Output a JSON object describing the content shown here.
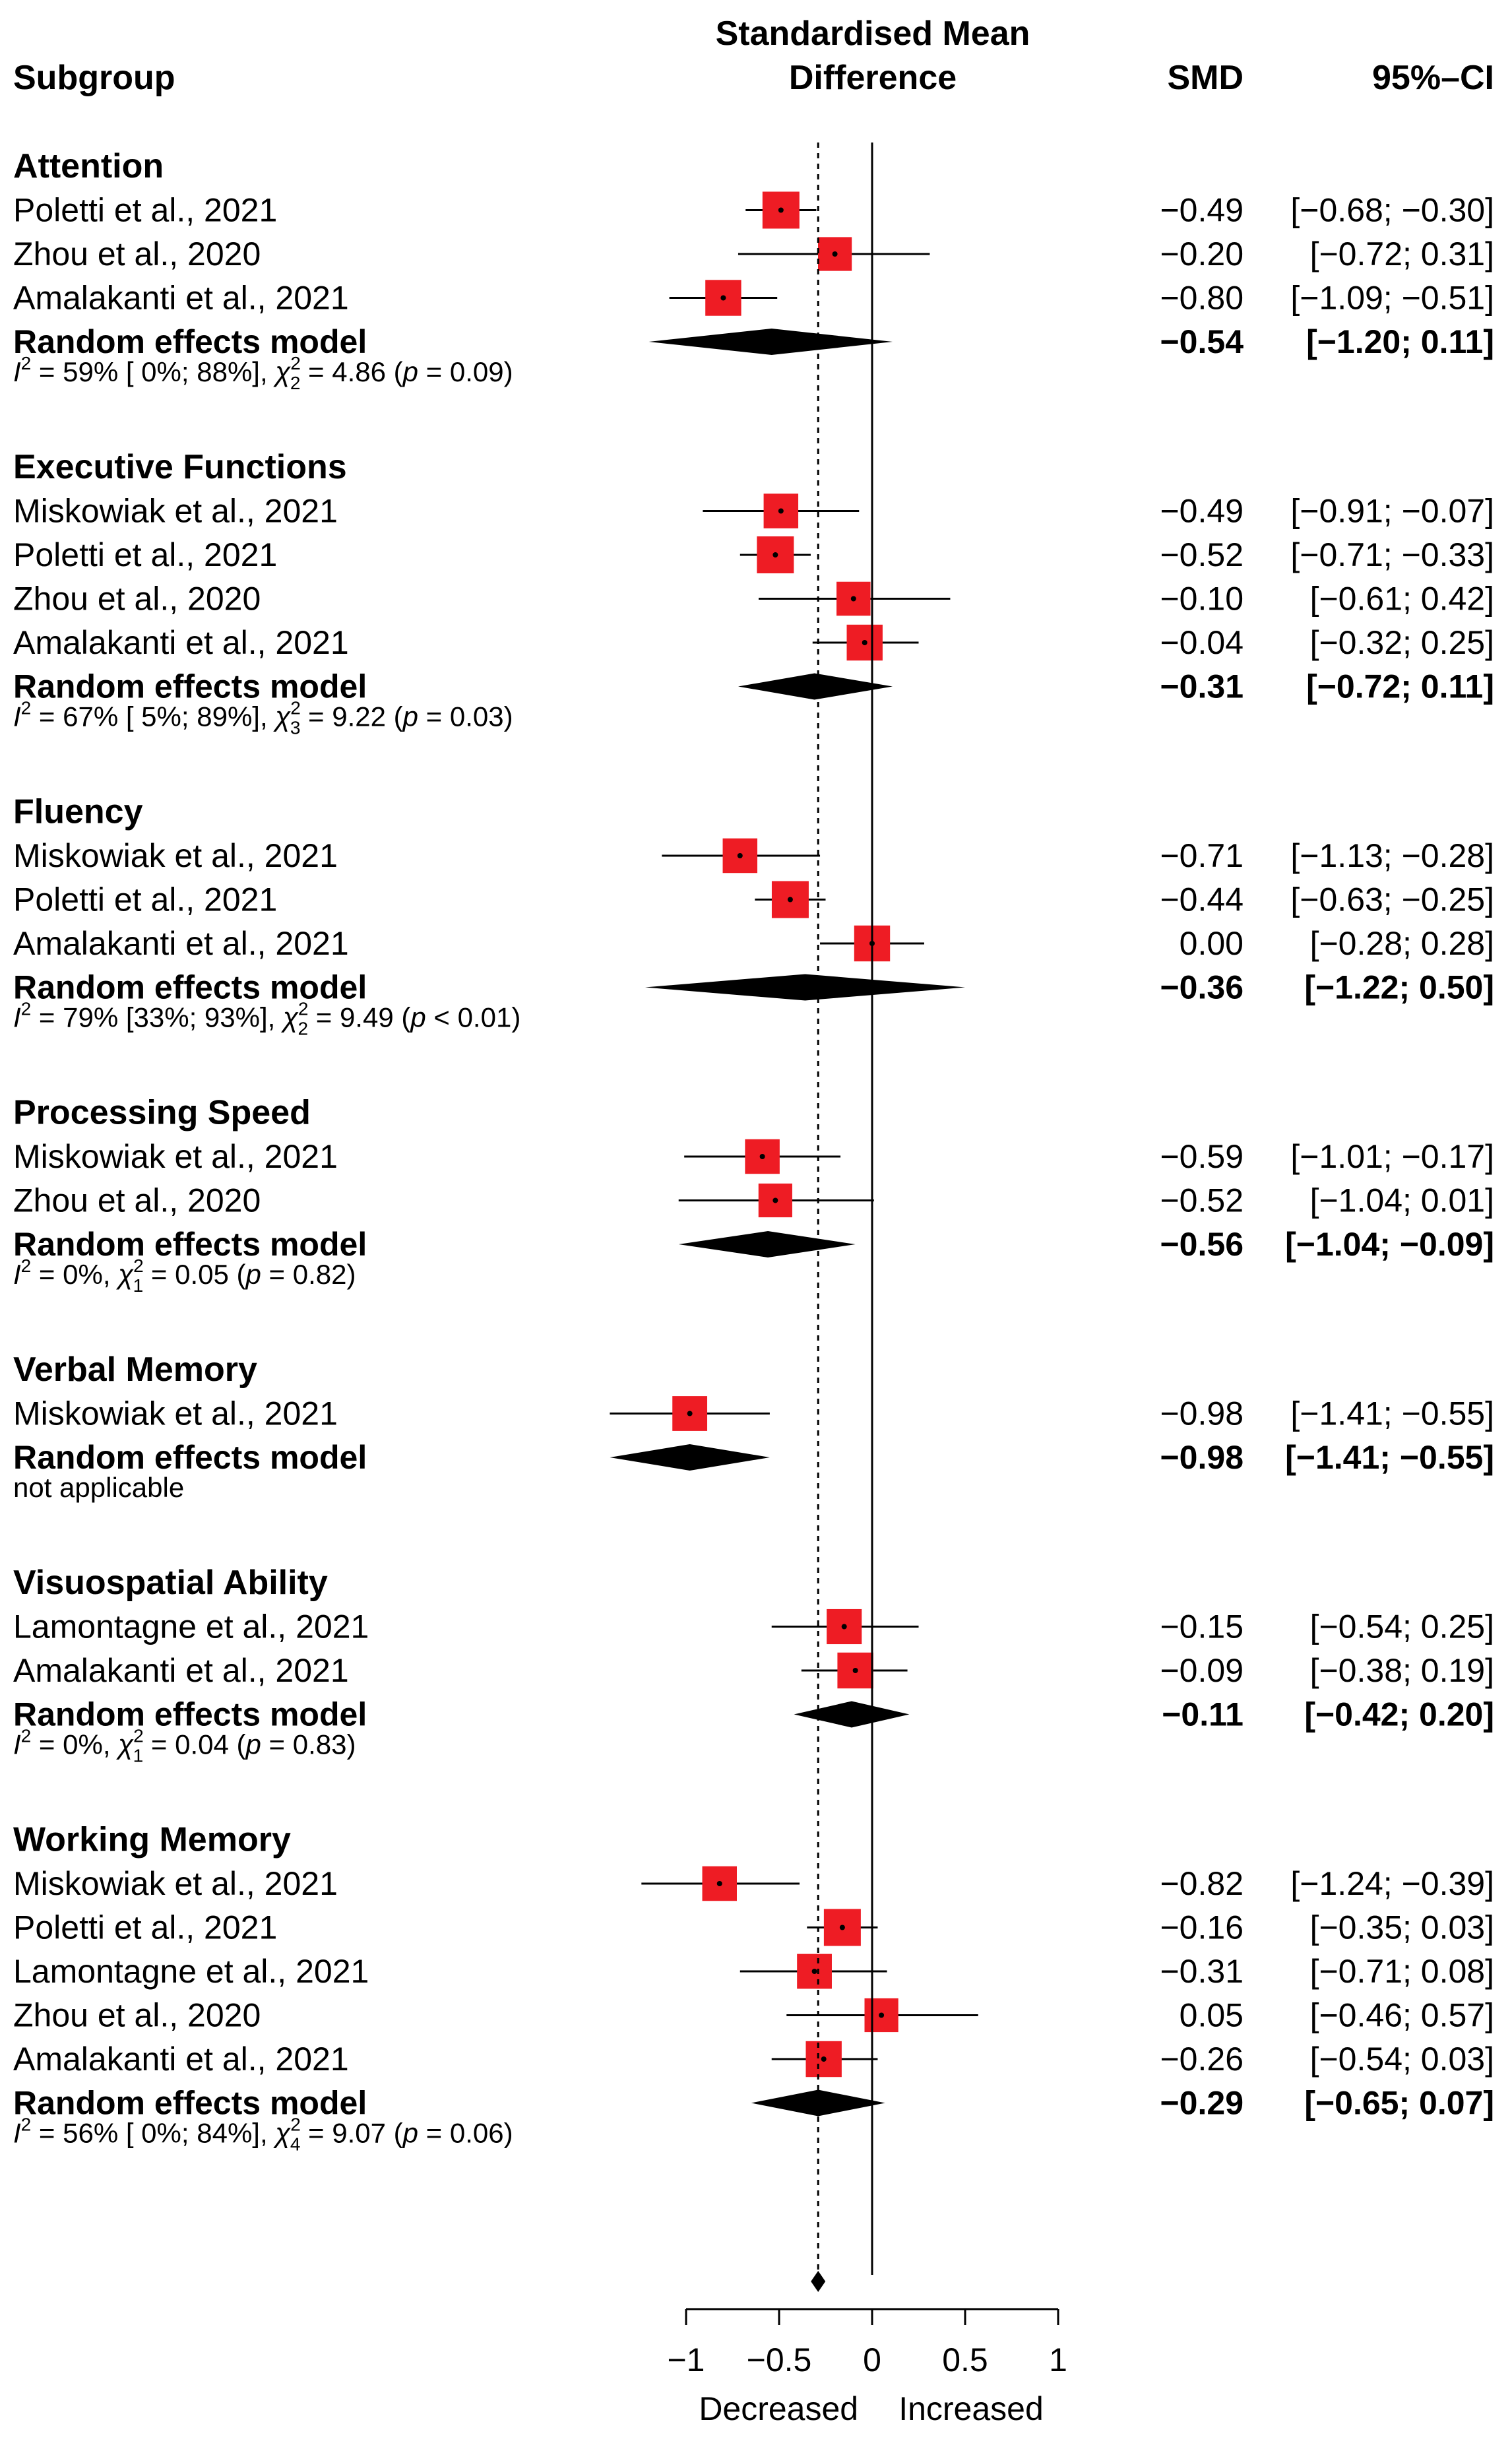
{
  "chart_data": {
    "type": "forest",
    "headers": {
      "subgroup": "Subgroup",
      "effect_line1": "Standardised Mean",
      "effect_line2": "Difference",
      "smd": "SMD",
      "ci": "95%–CI"
    },
    "xlim": [
      -1,
      1
    ],
    "x_ticks": [
      -1,
      -0.5,
      0,
      0.5,
      1
    ],
    "x_tick_labels": [
      "−1",
      "−0.5",
      "0",
      "0.5",
      "1"
    ],
    "x_axis_labels": {
      "left": "Decreased",
      "right": "Increased"
    },
    "overall_estimate": -0.29,
    "groups": [
      {
        "name": "Attention",
        "studies": [
          {
            "label": "Poletti et al., 2021",
            "smd": -0.49,
            "lo": -0.68,
            "hi": -0.3,
            "smd_text": "−0.49",
            "ci_text": "[−0.68; −0.30]",
            "weight": 1.0
          },
          {
            "label": "Zhou et al., 2020",
            "smd": -0.2,
            "lo": -0.72,
            "hi": 0.31,
            "smd_text": "−0.20",
            "ci_text": "[−0.72;  0.31]",
            "weight": 0.7
          },
          {
            "label": "Amalakanti et al., 2021",
            "smd": -0.8,
            "lo": -1.09,
            "hi": -0.51,
            "smd_text": "−0.80",
            "ci_text": "[−1.09; −0.51]",
            "weight": 0.9
          }
        ],
        "model": {
          "label": "Random effects model",
          "smd": -0.54,
          "lo": -1.2,
          "hi": 0.11,
          "smd_text": "−0.54",
          "ci_text": "[−1.20;  0.11]"
        },
        "heterogeneity": {
          "i2_text": " = 59% [ 0%; 88%], ",
          "df": "2",
          "chi_text": " = 4.86 (",
          "p_text": " = 0.09)"
        }
      },
      {
        "name": "Executive Functions",
        "studies": [
          {
            "label": "Miskowiak et al., 2021",
            "smd": -0.49,
            "lo": -0.91,
            "hi": -0.07,
            "smd_text": "−0.49",
            "ci_text": "[−0.91; −0.07]",
            "weight": 0.78
          },
          {
            "label": "Poletti et al., 2021",
            "smd": -0.52,
            "lo": -0.71,
            "hi": -0.33,
            "smd_text": "−0.52",
            "ci_text": "[−0.71; −0.33]",
            "weight": 1.0
          },
          {
            "label": "Zhou et al., 2020",
            "smd": -0.1,
            "lo": -0.61,
            "hi": 0.42,
            "smd_text": "−0.10",
            "ci_text": "[−0.61;  0.42]",
            "weight": 0.72
          },
          {
            "label": "Amalakanti et al., 2021",
            "smd": -0.04,
            "lo": -0.32,
            "hi": 0.25,
            "smd_text": "−0.04",
            "ci_text": "[−0.32;  0.25]",
            "weight": 0.9
          }
        ],
        "model": {
          "label": "Random effects model",
          "smd": -0.31,
          "lo": -0.72,
          "hi": 0.11,
          "smd_text": "−0.31",
          "ci_text": "[−0.72;  0.11]"
        },
        "heterogeneity": {
          "i2_text": " = 67% [ 5%; 89%], ",
          "df": "3",
          "chi_text": " = 9.22 (",
          "p_text": " = 0.03)"
        }
      },
      {
        "name": "Fluency",
        "studies": [
          {
            "label": "Miskowiak et al., 2021",
            "smd": -0.71,
            "lo": -1.13,
            "hi": -0.28,
            "smd_text": "−0.71",
            "ci_text": "[−1.13; −0.28]",
            "weight": 0.78
          },
          {
            "label": "Poletti et al., 2021",
            "smd": -0.44,
            "lo": -0.63,
            "hi": -0.25,
            "smd_text": "−0.44",
            "ci_text": "[−0.63; −0.25]",
            "weight": 1.0
          },
          {
            "label": "Amalakanti et al., 2021",
            "smd": 0.0,
            "lo": -0.28,
            "hi": 0.28,
            "smd_text": "0.00",
            "ci_text": "[−0.28;  0.28]",
            "weight": 0.9
          }
        ],
        "model": {
          "label": "Random effects model",
          "smd": -0.36,
          "lo": -1.22,
          "hi": 0.5,
          "smd_text": "−0.36",
          "ci_text": "[−1.22;  0.50]"
        },
        "heterogeneity": {
          "i2_text": " = 79% [33%; 93%], ",
          "df": "2",
          "chi_text": " = 9.49 (",
          "p_text": " < 0.01)"
        }
      },
      {
        "name": "Processing Speed",
        "studies": [
          {
            "label": "Miskowiak et al., 2021",
            "smd": -0.59,
            "lo": -1.01,
            "hi": -0.17,
            "smd_text": "−0.59",
            "ci_text": "[−1.01; −0.17]",
            "weight": 0.78
          },
          {
            "label": "Zhou et al., 2020",
            "smd": -0.52,
            "lo": -1.04,
            "hi": 0.01,
            "smd_text": "−0.52",
            "ci_text": "[−1.04;  0.01]",
            "weight": 0.7
          }
        ],
        "model": {
          "label": "Random effects model",
          "smd": -0.56,
          "lo": -1.04,
          "hi": -0.09,
          "smd_text": "−0.56",
          "ci_text": "[−1.04; −0.09]"
        },
        "heterogeneity": {
          "i2_text": " = 0%, ",
          "df": "1",
          "chi_text": " = 0.05 (",
          "p_text": " = 0.82)"
        }
      },
      {
        "name": "Verbal Memory",
        "studies": [
          {
            "label": "Miskowiak et al., 2021",
            "smd": -0.98,
            "lo": -1.41,
            "hi": -0.55,
            "smd_text": "−0.98",
            "ci_text": "[−1.41; −0.55]",
            "weight": 0.8
          }
        ],
        "model": {
          "label": "Random effects model",
          "smd": -0.98,
          "lo": -1.41,
          "hi": -0.55,
          "smd_text": "−0.98",
          "ci_text": "[−1.41; −0.55]"
        },
        "heterogeneity": {
          "plain": "not applicable"
        }
      },
      {
        "name": "Visuospatial Ability",
        "studies": [
          {
            "label": "Lamontagne et al., 2021",
            "smd": -0.15,
            "lo": -0.54,
            "hi": 0.25,
            "smd_text": "−0.15",
            "ci_text": "[−0.54;  0.25]",
            "weight": 0.82
          },
          {
            "label": "Amalakanti et al., 2021",
            "smd": -0.09,
            "lo": -0.38,
            "hi": 0.19,
            "smd_text": "−0.09",
            "ci_text": "[−0.38;  0.19]",
            "weight": 0.9
          }
        ],
        "model": {
          "label": "Random effects model",
          "smd": -0.11,
          "lo": -0.42,
          "hi": 0.2,
          "smd_text": "−0.11",
          "ci_text": "[−0.42;  0.20]"
        },
        "heterogeneity": {
          "i2_text": " = 0%, ",
          "df": "1",
          "chi_text": " = 0.04 (",
          "p_text": " = 0.83)"
        }
      },
      {
        "name": "Working Memory",
        "studies": [
          {
            "label": "Miskowiak et al., 2021",
            "smd": -0.82,
            "lo": -1.24,
            "hi": -0.39,
            "smd_text": "−0.82",
            "ci_text": "[−1.24; −0.39]",
            "weight": 0.78
          },
          {
            "label": "Poletti et al., 2021",
            "smd": -0.16,
            "lo": -0.35,
            "hi": 0.03,
            "smd_text": "−0.16",
            "ci_text": "[−0.35;  0.03]",
            "weight": 1.0
          },
          {
            "label": "Lamontagne et al., 2021",
            "smd": -0.31,
            "lo": -0.71,
            "hi": 0.08,
            "smd_text": "−0.31",
            "ci_text": "[−0.71;  0.08]",
            "weight": 0.8
          },
          {
            "label": "Zhou et al., 2020",
            "smd": 0.05,
            "lo": -0.46,
            "hi": 0.57,
            "smd_text": "0.05",
            "ci_text": "[−0.46;  0.57]",
            "weight": 0.7
          },
          {
            "label": "Amalakanti et al., 2021",
            "smd": -0.26,
            "lo": -0.54,
            "hi": 0.03,
            "smd_text": "−0.26",
            "ci_text": "[−0.54;  0.03]",
            "weight": 0.9
          }
        ],
        "model": {
          "label": "Random effects model",
          "smd": -0.29,
          "lo": -0.65,
          "hi": 0.07,
          "smd_text": "−0.29",
          "ci_text": "[−0.65;  0.07]"
        },
        "heterogeneity": {
          "i2_text": " = 56% [ 0%; 84%], ",
          "df": "4",
          "chi_text": " = 9.07 (",
          "p_text": " = 0.06)"
        }
      }
    ],
    "colors": {
      "square": "#ee1c24",
      "diamond": "#000000",
      "line": "#000000"
    }
  }
}
